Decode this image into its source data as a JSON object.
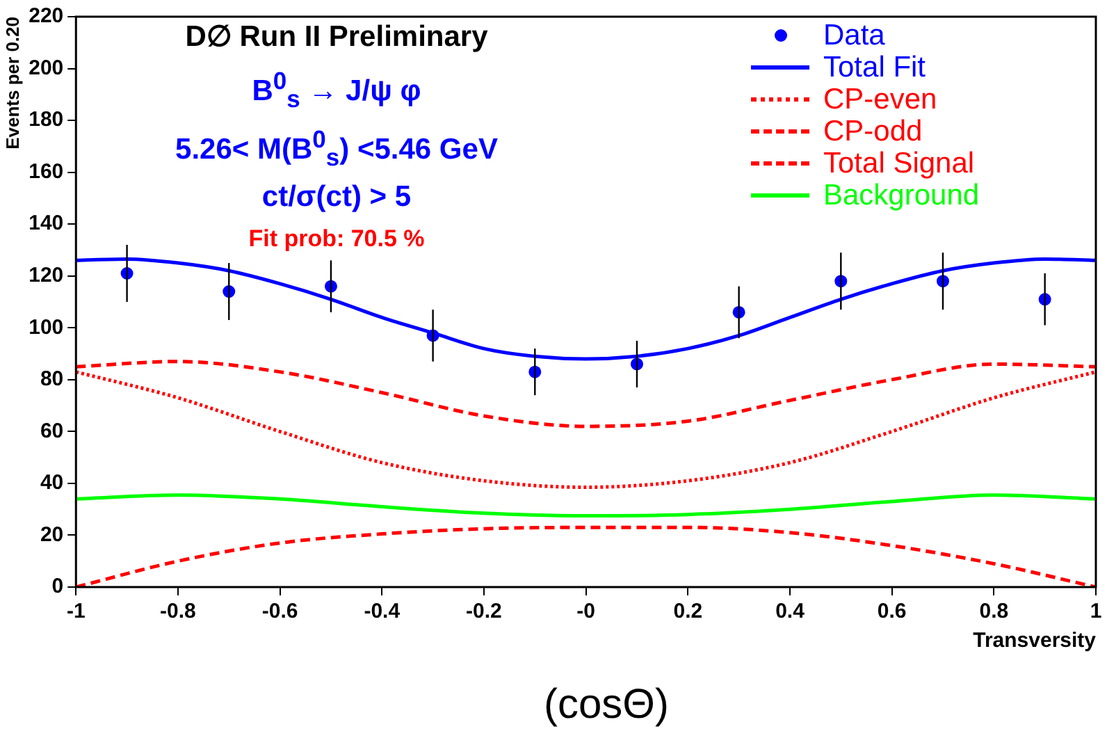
{
  "chart_data": {
    "type": "line",
    "xlabel": "Transversity",
    "ylabel": "Events per 0.20",
    "annotations": [
      "D∅ Run II Preliminary",
      "B$^{0}$$_{s}$ → J/ψ φ",
      "5.26< M(B$^{0}$$_{s}$) <5.46 GeV",
      "ct/σ(ct) > 5",
      "Fit prob: 70.5 %",
      "(cosΘ)"
    ],
    "xlim": [
      -1,
      1
    ],
    "xticks": [
      -1,
      -0.8,
      -0.6,
      -0.4,
      -0.2,
      {
        "value": 0,
        "label": "-0"
      },
      0.2,
      0.4,
      0.6,
      0.8,
      1
    ],
    "ylim": [
      0,
      220
    ],
    "yticks": [
      0,
      20,
      40,
      60,
      80,
      100,
      120,
      140,
      160,
      180,
      200,
      220
    ],
    "grid": false,
    "legend": "top right",
    "series": [
      {
        "name": "Data",
        "type": "scatter",
        "marker": "circle",
        "color": "#0000ff",
        "x": [
          -0.9,
          -0.7,
          -0.5,
          -0.3,
          -0.1,
          0.1,
          0.3,
          0.5,
          0.7,
          0.9
        ],
        "values": [
          121,
          114,
          116,
          97,
          83,
          86,
          106,
          118,
          118,
          111
        ],
        "errors": [
          11,
          11,
          10,
          10,
          9,
          9,
          10,
          11,
          11,
          10
        ]
      },
      {
        "name": "Total Fit",
        "line_style": "solid",
        "color": "#0000ff",
        "x": [
          -1,
          -0.9,
          -0.8,
          -0.7,
          -0.6,
          -0.5,
          -0.4,
          -0.3,
          -0.2,
          -0.1,
          0,
          0.1,
          0.2,
          0.3,
          0.4,
          0.5,
          0.6,
          0.7,
          0.8,
          0.9,
          1
        ],
        "values": [
          126,
          126.5,
          125,
          122,
          117,
          111,
          104,
          98,
          92,
          89,
          88,
          89,
          92,
          97,
          104,
          111,
          117,
          122,
          125,
          126.5,
          126
        ]
      },
      {
        "name": "CP-even",
        "line_style": "dotted",
        "color": "#ff0000",
        "x": [
          -1,
          -0.8,
          -0.6,
          -0.4,
          -0.2,
          0,
          0.2,
          0.4,
          0.6,
          0.8,
          1
        ],
        "values": [
          83,
          73,
          60,
          48,
          41,
          38.5,
          41,
          48,
          60,
          73,
          83
        ]
      },
      {
        "name": "CP-odd",
        "line_style": "dashed",
        "color": "#ff0000",
        "x": [
          -1,
          -0.8,
          -0.6,
          -0.4,
          -0.2,
          0,
          0.2,
          0.4,
          0.6,
          0.8,
          1
        ],
        "values": [
          0,
          10,
          17,
          20.5,
          22.5,
          23,
          23,
          21,
          16,
          9,
          0
        ]
      },
      {
        "name": "Total Signal",
        "line_style": "dashed",
        "color": "#ff0000",
        "x": [
          -1,
          -0.8,
          -0.6,
          -0.4,
          -0.2,
          0,
          0.2,
          0.4,
          0.6,
          0.8,
          1
        ],
        "values": [
          85,
          87,
          83,
          75,
          66,
          62,
          64,
          72,
          80,
          86,
          85
        ]
      },
      {
        "name": "Background",
        "line_style": "solid",
        "color": "#00ff00",
        "x": [
          -1,
          -0.8,
          -0.6,
          -0.4,
          -0.2,
          0,
          0.2,
          0.4,
          0.6,
          0.8,
          1
        ],
        "values": [
          34,
          35.5,
          34,
          31,
          28.5,
          27.5,
          28,
          30,
          33,
          35.5,
          34
        ]
      }
    ]
  }
}
